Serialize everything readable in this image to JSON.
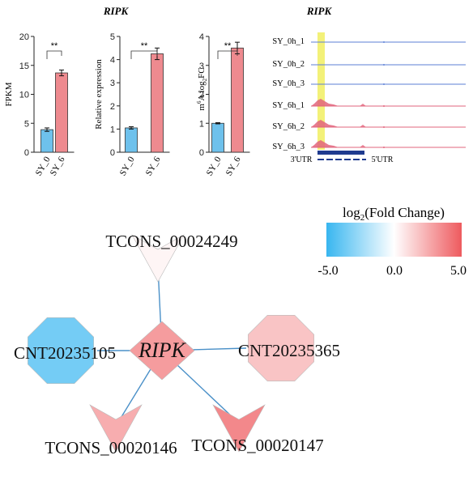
{
  "gene_title": "RIPK",
  "track_title": "RIPK",
  "chart_data": [
    {
      "type": "bar",
      "ylabel": "FPKM",
      "categories": [
        "SY_0",
        "SY_6"
      ],
      "values": [
        3.9,
        13.7
      ],
      "errors": [
        0.3,
        0.5
      ],
      "ylim": [
        0,
        20
      ],
      "yticks": [
        0,
        5,
        10,
        15,
        20
      ],
      "significance": "**",
      "colors": [
        "#6ec1ec",
        "#ee8a8f"
      ]
    },
    {
      "type": "bar",
      "ylabel": "Relative expression",
      "categories": [
        "SY_0",
        "SY_6"
      ],
      "values": [
        1.05,
        4.25
      ],
      "errors": [
        0.05,
        0.25
      ],
      "ylim": [
        0,
        5
      ],
      "yticks": [
        0,
        1,
        2,
        3,
        4,
        5
      ],
      "significance": "**",
      "colors": [
        "#6ec1ec",
        "#ee8a8f"
      ]
    },
    {
      "type": "bar",
      "ylabel_prefix": "m",
      "ylabel_sup": "6",
      "ylabel_mid": "A  log",
      "ylabel_sub": "2",
      "ylabel_suffix": "FC",
      "categories": [
        "SY_0",
        "SY_6"
      ],
      "values": [
        1.0,
        3.6
      ],
      "errors": [
        0.02,
        0.2
      ],
      "ylim": [
        0,
        4
      ],
      "yticks": [
        0,
        1,
        2,
        3,
        4
      ],
      "significance": "**",
      "colors": [
        "#6ec1ec",
        "#ee8a8f"
      ]
    }
  ],
  "tracks": {
    "labels": [
      "SY_0h_1",
      "SY_0h_2",
      "SY_0h_3",
      "SY_6h_1",
      "SY_6h_2",
      "SY_6h_3"
    ],
    "utr_left": "3'UTR",
    "utr_right": "5'UTR",
    "highlight_color": "#f2f06a",
    "colors": {
      "0h": "#5b7fd6",
      "6h": "#e2647c"
    }
  },
  "legend": {
    "title_prefix": "log",
    "title_sub": "2",
    "title_suffix": "(Fold Change)",
    "min_label": "-5.0",
    "mid_label": "0.0",
    "max_label": "5.0",
    "min": -5.0,
    "max": 5.0,
    "color_low": "#38b6f0",
    "color_mid": "#ffffff",
    "color_high": "#ee5a5e"
  },
  "network": {
    "center": {
      "id": "RIPK",
      "shape": "diamond",
      "fc": 3.0
    },
    "nodes": [
      {
        "id": "TCONS_00024249",
        "shape": "v",
        "fc": 0.3
      },
      {
        "id": "CNT20235105",
        "shape": "octagon",
        "fc": -3.5
      },
      {
        "id": "CNT20235365",
        "shape": "octagon",
        "fc": 1.8
      },
      {
        "id": "TCONS_00020146",
        "shape": "v",
        "fc": 2.5
      },
      {
        "id": "TCONS_00020147",
        "shape": "v",
        "fc": 3.6
      }
    ],
    "edge_color": "#4a90c8"
  }
}
